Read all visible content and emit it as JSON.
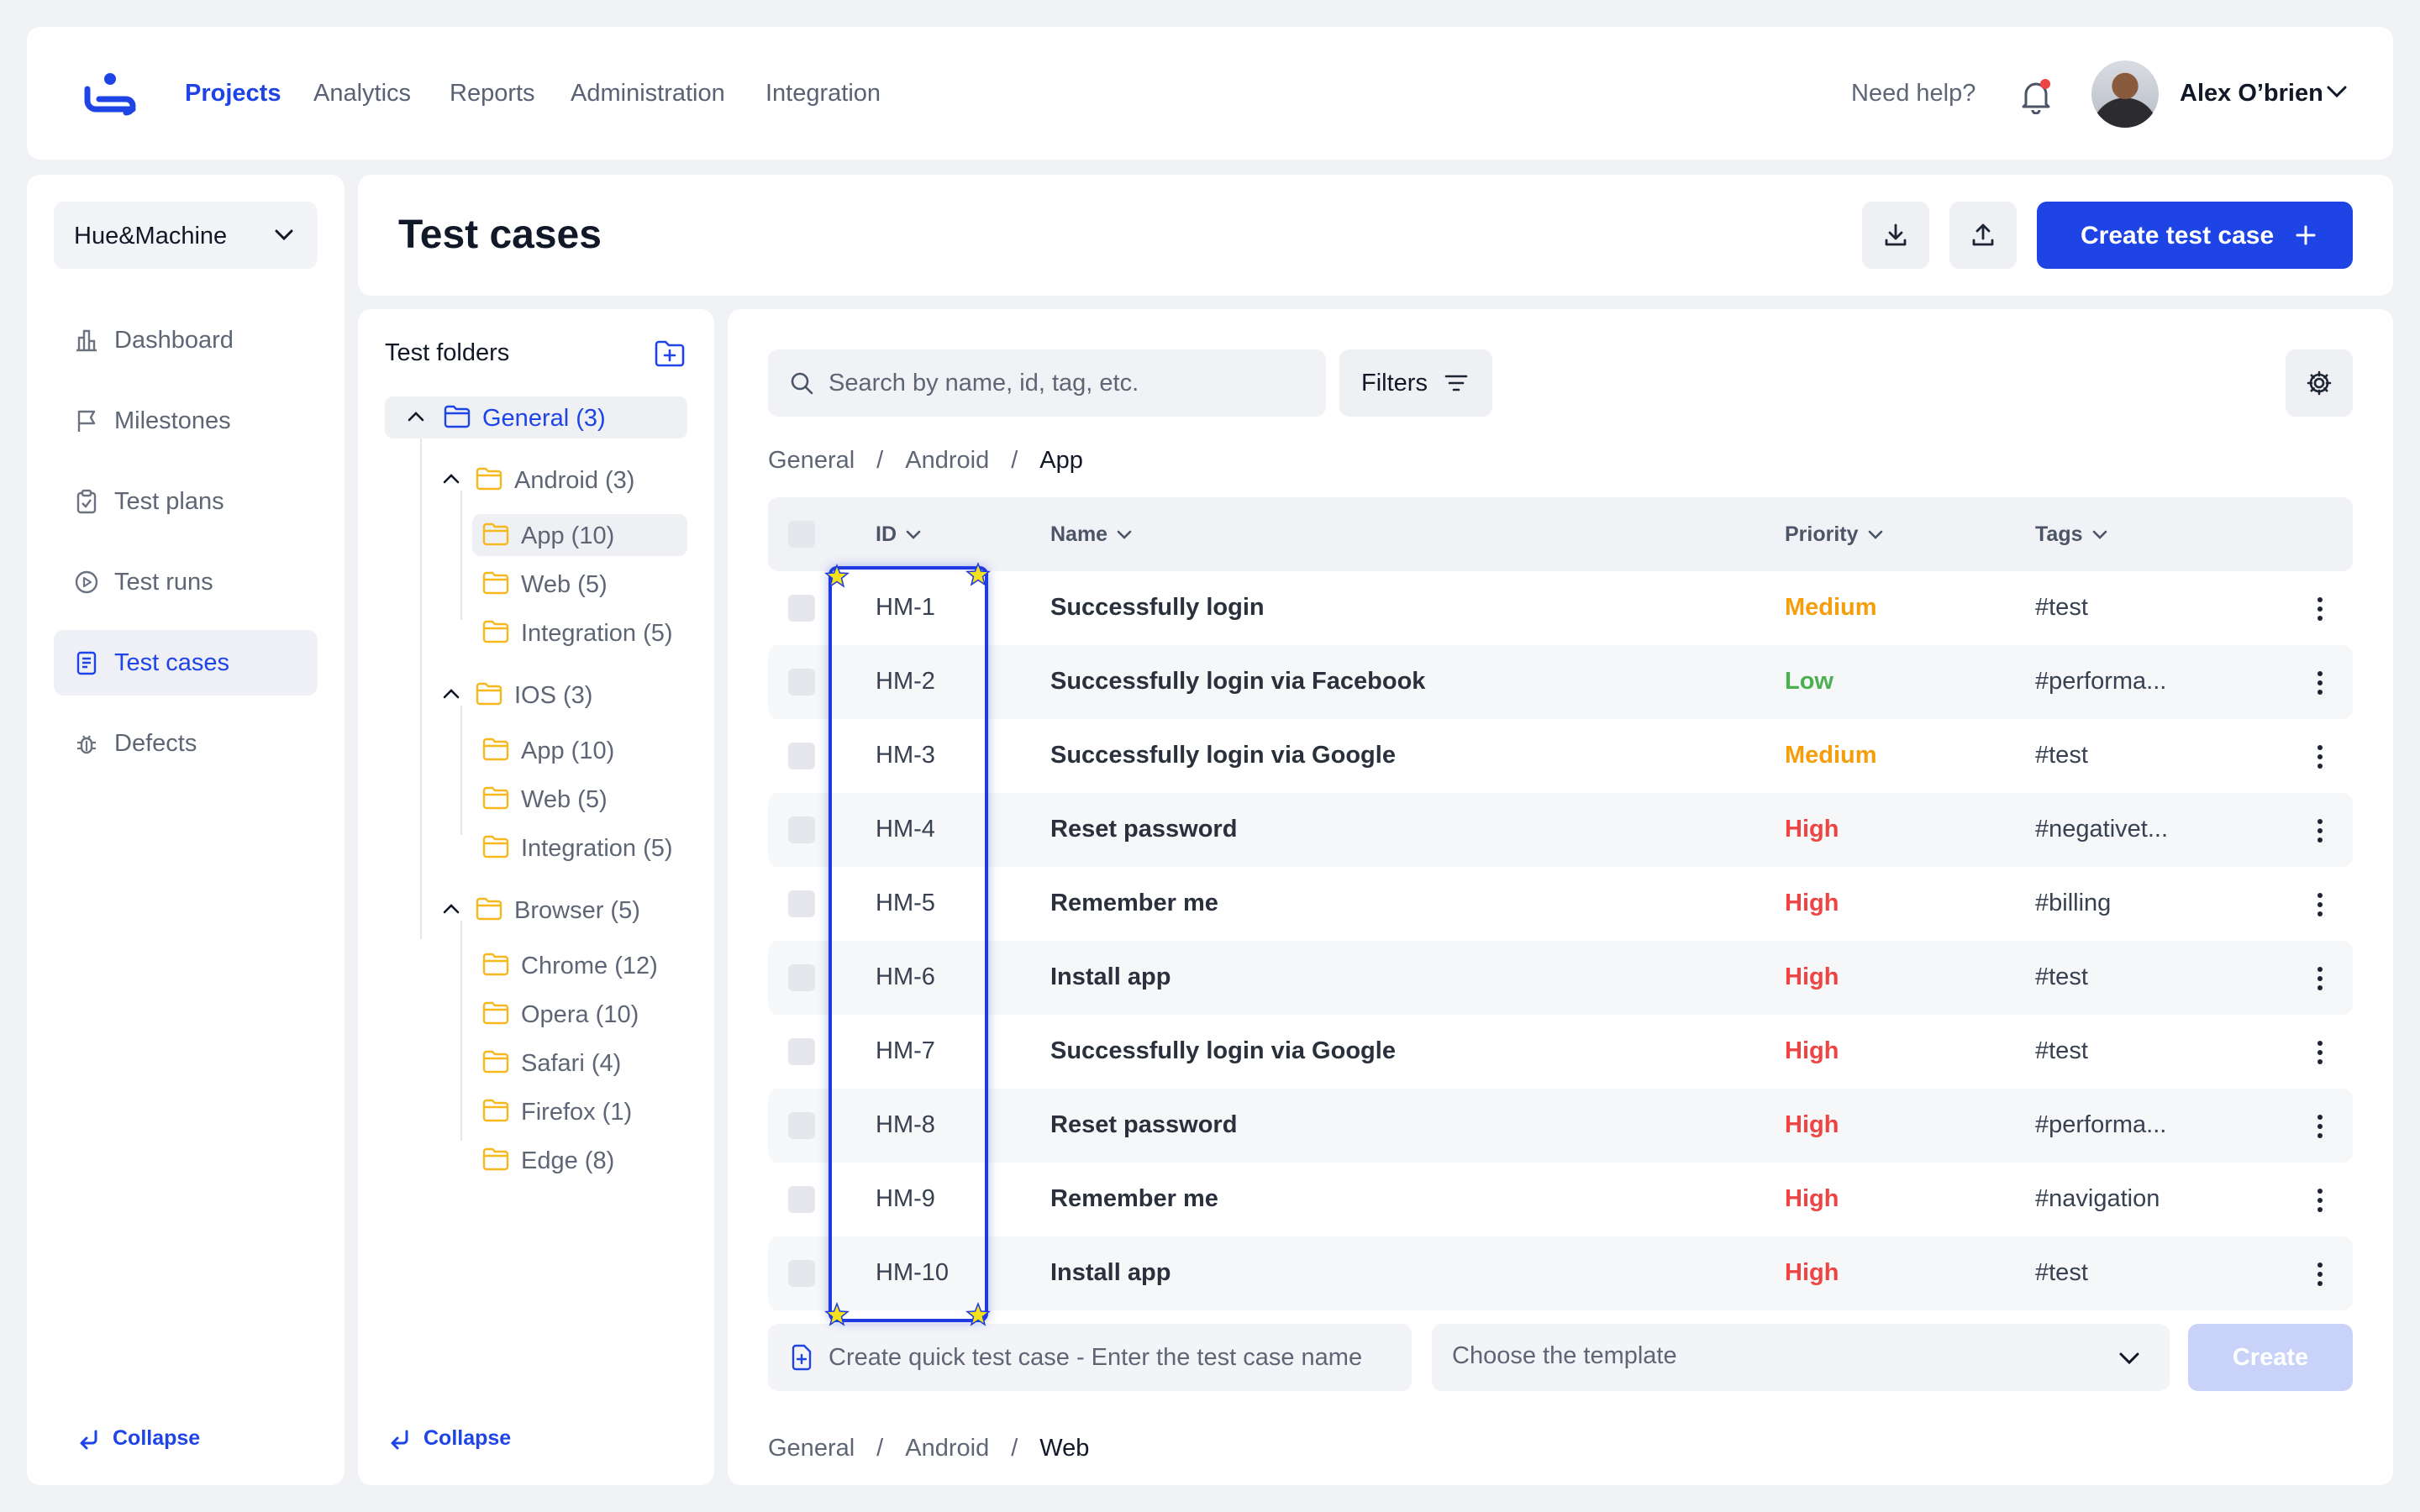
{
  "nav": {
    "links": [
      "Projects",
      "Analytics",
      "Reports",
      "Administration",
      "Integration"
    ],
    "help": "Need help?",
    "user_name": "Alex O’brien"
  },
  "sidebar": {
    "project": "Hue&Machine",
    "items": [
      {
        "label": "Dashboard",
        "icon": "dashboard-icon"
      },
      {
        "label": "Milestones",
        "icon": "flag-icon"
      },
      {
        "label": "Test plans",
        "icon": "clipboard-icon"
      },
      {
        "label": "Test runs",
        "icon": "play-circle-icon"
      },
      {
        "label": "Test cases",
        "icon": "document-list-icon",
        "active": true
      },
      {
        "label": "Defects",
        "icon": "bug-icon"
      }
    ],
    "collapse": "Collapse"
  },
  "header": {
    "title": "Test cases",
    "create_label": "Create test case"
  },
  "folders": {
    "title": "Test folders",
    "collapse": "Collapse",
    "tree": {
      "general": "General (3)",
      "android": "Android (3)",
      "android_app": "App (10)",
      "android_web": "Web (5)",
      "android_integration": "Integration (5)",
      "ios": "IOS (3)",
      "ios_app": "App (10)",
      "ios_web": "Web (5)",
      "ios_integration": "Integration (5)",
      "browser": "Browser (5)",
      "chrome": "Chrome (12)",
      "opera": "Opera (10)",
      "safari": "Safari (4)",
      "firefox": "Firefox (1)",
      "edge": "Edge (8)"
    }
  },
  "main": {
    "search_placeholder": "Search by name, id, tag, etc.",
    "filters_label": "Filters",
    "breadcrumb": [
      "General",
      "/",
      "Android",
      "/",
      "App"
    ],
    "columns": {
      "id": "ID",
      "name": "Name",
      "priority": "Priority",
      "tags": "Tags"
    },
    "rows": [
      {
        "id": "HM-1",
        "name": "Successfully login",
        "priority": "Medium",
        "tags": "#test"
      },
      {
        "id": "HM-2",
        "name": "Successfully login via Facebook",
        "priority": "Low",
        "tags": "#performa..."
      },
      {
        "id": "HM-3",
        "name": "Successfully login via Google",
        "priority": "Medium",
        "tags": "#test"
      },
      {
        "id": "HM-4",
        "name": "Reset password",
        "priority": "High",
        "tags": "#negativet..."
      },
      {
        "id": "HM-5",
        "name": "Remember me",
        "priority": "High",
        "tags": "#billing"
      },
      {
        "id": "HM-6",
        "name": "Install app",
        "priority": "High",
        "tags": "#test"
      },
      {
        "id": "HM-7",
        "name": "Successfully login via Google",
        "priority": "High",
        "tags": "#test"
      },
      {
        "id": "HM-8",
        "name": "Reset password",
        "priority": "High",
        "tags": "#performa..."
      },
      {
        "id": "HM-9",
        "name": "Remember me",
        "priority": "High",
        "tags": "#navigation"
      },
      {
        "id": "HM-10",
        "name": "Install app",
        "priority": "High",
        "tags": "#test"
      }
    ],
    "quick_placeholder": "Create quick test case - Enter the test case name",
    "template_placeholder": "Choose the template",
    "create_label": "Create",
    "breadcrumb2": [
      "General",
      "/",
      "Android",
      "/",
      "Web"
    ]
  },
  "colors": {
    "accent": "#1E44E6",
    "priority_medium": "#F59E0B",
    "priority_low": "#4CAF50",
    "priority_high": "#EF4444",
    "highlight": "#1E3AE0",
    "star": "#F5E21A"
  }
}
